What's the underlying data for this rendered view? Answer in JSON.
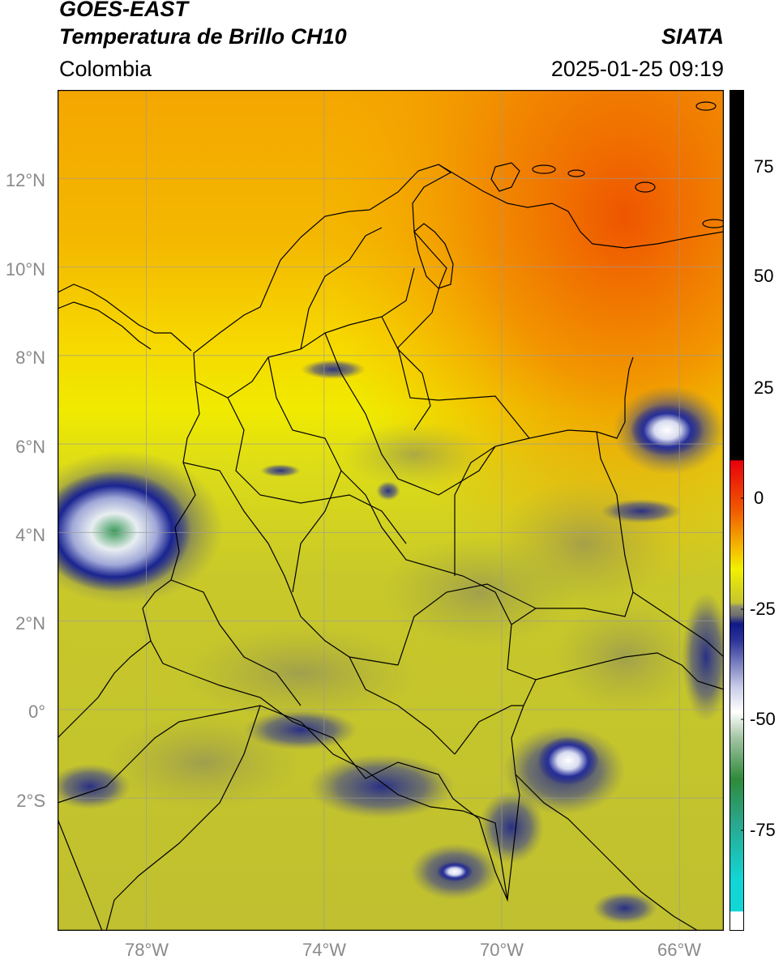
{
  "header": {
    "satellite": "GOES-EAST",
    "product": "Temperatura de Brillo CH10",
    "region": "Colombia",
    "source": "SIATA",
    "datetime": "2025-01-25 09:19"
  },
  "map": {
    "lat_labels": [
      "12°N",
      "10°N",
      "8°N",
      "6°N",
      "4°N",
      "2°N",
      "0°",
      "2°S"
    ],
    "lon_labels": [
      "78°W",
      "74°W",
      "70°W",
      "66°W"
    ],
    "extent": {
      "lon": [
        -80,
        -65
      ],
      "lat": [
        -5,
        14
      ]
    }
  },
  "colorbar": {
    "tick_labels": [
      "75",
      "50",
      "25",
      "0",
      "-25",
      "-50",
      "-75"
    ],
    "colors": {
      "hot": "#000000",
      "red": "#e8000b",
      "orange": "#f08a00",
      "yellow": "#f2f000",
      "olive": "#c4c431",
      "gray": "#6e6e6e",
      "navy": "#101888",
      "white": "#ffffff",
      "green": "#2f8a3a",
      "cyan": "#12d6d6"
    }
  }
}
